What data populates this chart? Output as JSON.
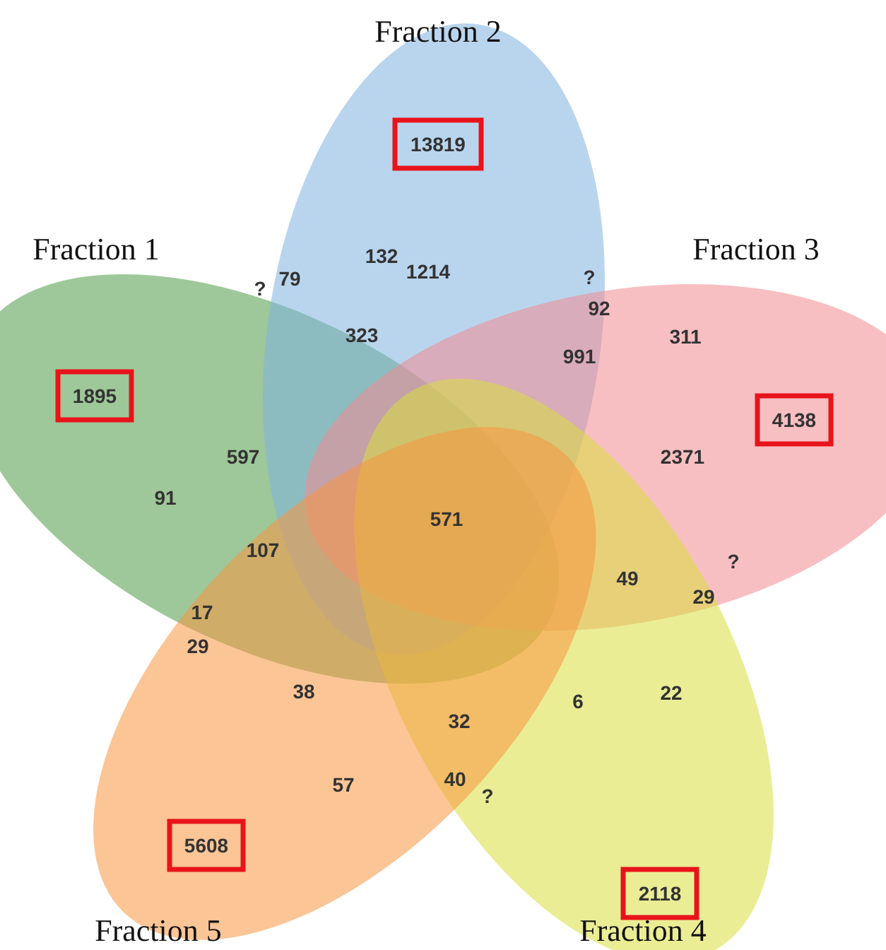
{
  "chart_data": {
    "type": "other",
    "categories": [
      "Fraction 1",
      "Fraction 2",
      "Fraction 3",
      "Fraction 4",
      "Fraction 5"
    ],
    "values": [
      1895,
      13819,
      4138,
      2118,
      5608
    ],
    "data_labels": true,
    "colors": [
      "#4f9a45",
      "#7fb2e0",
      "#f28a8f",
      "#d9df3c",
      "#f7963f"
    ],
    "annotations": [
      "132",
      "?",
      "79",
      "1214",
      "?",
      "92",
      "323",
      "991",
      "311",
      "597",
      "2371",
      "91",
      "571",
      "107",
      "49",
      "?",
      "29",
      "17",
      "29",
      "38",
      "22",
      "6",
      "32",
      "57",
      "40",
      "?"
    ]
  }
}
